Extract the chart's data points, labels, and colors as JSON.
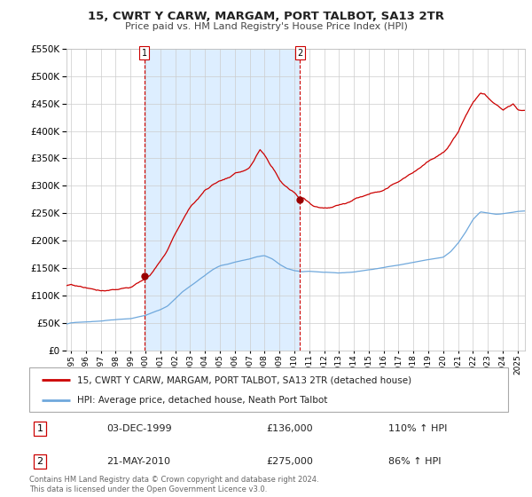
{
  "title": "15, CWRT Y CARW, MARGAM, PORT TALBOT, SA13 2TR",
  "subtitle": "Price paid vs. HM Land Registry's House Price Index (HPI)",
  "legend_line1": "15, CWRT Y CARW, MARGAM, PORT TALBOT, SA13 2TR (detached house)",
  "legend_line2": "HPI: Average price, detached house, Neath Port Talbot",
  "annotation1_date": "03-DEC-1999",
  "annotation1_price": "£136,000",
  "annotation1_hpi": "110% ↑ HPI",
  "annotation2_date": "21-MAY-2010",
  "annotation2_price": "£275,000",
  "annotation2_hpi": "86% ↑ HPI",
  "sale1_year": 1999.92,
  "sale1_value": 136000,
  "sale2_year": 2010.38,
  "sale2_value": 275000,
  "hpi_color": "#6fa8dc",
  "price_color": "#cc0000",
  "bg_shade_color": "#ddeeff",
  "point_color": "#990000",
  "footer_text": "Contains HM Land Registry data © Crown copyright and database right 2024.\nThis data is licensed under the Open Government Licence v3.0.",
  "ylim": [
    0,
    550000
  ],
  "yticks": [
    0,
    50000,
    100000,
    150000,
    200000,
    250000,
    300000,
    350000,
    400000,
    450000,
    500000,
    550000
  ],
  "xlim_start": 1994.7,
  "xlim_end": 2025.5
}
